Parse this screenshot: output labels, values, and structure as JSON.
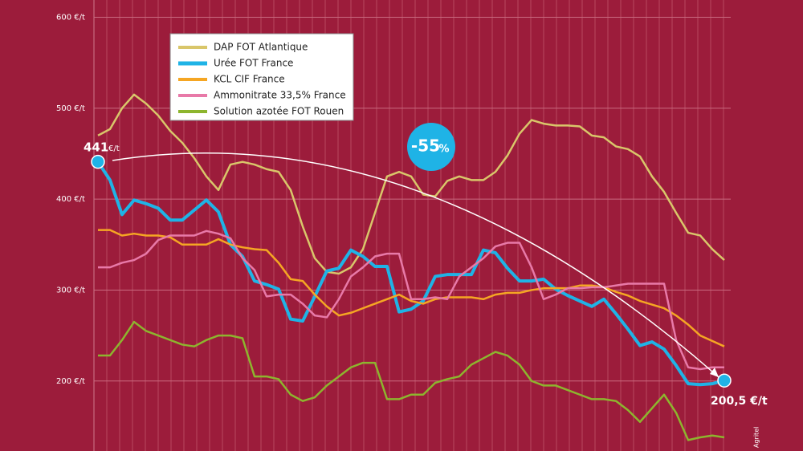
{
  "chart_data": {
    "type": "line",
    "categories": [
      null,
      null,
      null,
      null,
      null,
      null,
      null,
      null,
      null,
      null,
      null,
      null,
      null,
      null,
      null,
      null,
      null,
      null,
      null,
      null,
      null,
      null,
      null,
      null,
      null,
      null,
      null,
      null,
      null,
      null,
      null,
      null,
      null,
      null,
      null,
      null,
      null,
      null,
      null,
      null,
      null,
      null,
      null,
      null,
      null,
      null,
      null,
      null,
      null,
      null,
      null,
      null,
      null
    ],
    "series": [
      {
        "name": "DAP FOT Atlantique",
        "color": "#d9c66a",
        "values": [
          470,
          477,
          500,
          515,
          505,
          492,
          475,
          462,
          445,
          425,
          410,
          438,
          441,
          438,
          433,
          430,
          410,
          370,
          335,
          320,
          318,
          325,
          345,
          385,
          425,
          430,
          425,
          405,
          403,
          420,
          425,
          421,
          421,
          430,
          448,
          472,
          487,
          483,
          481,
          481,
          480,
          470,
          468,
          458,
          455,
          447,
          425,
          408,
          385,
          363,
          360,
          345,
          333
        ]
      },
      {
        "name": "Urée FOT France",
        "color": "#1fb3e6",
        "values": [
          441,
          421,
          383,
          399,
          395,
          390,
          377,
          377,
          388,
          399,
          386,
          350,
          337,
          310,
          306,
          301,
          268,
          266,
          293,
          321,
          324,
          344,
          337,
          326,
          326,
          276,
          279,
          288,
          315,
          317,
          317,
          317,
          344,
          341,
          324,
          310,
          310,
          312,
          301,
          294,
          288,
          282,
          290,
          274,
          257,
          239,
          243,
          235,
          217,
          197,
          196,
          197,
          200.5
        ]
      },
      {
        "name": "KCL CIF France",
        "color": "#f5a623",
        "values": [
          366,
          366,
          360,
          362,
          360,
          360,
          358,
          350,
          350,
          350,
          356,
          350,
          347,
          345,
          344,
          330,
          312,
          310,
          295,
          282,
          272,
          275,
          280,
          285,
          290,
          295,
          288,
          285,
          290,
          292,
          292,
          292,
          290,
          295,
          297,
          297,
          300,
          302,
          302,
          302,
          305,
          305,
          303,
          298,
          294,
          288,
          284,
          280,
          272,
          262,
          250,
          244,
          238
        ]
      },
      {
        "name": "Ammonitrate 33,5% France",
        "color": "#e879a8",
        "values": [
          325,
          325,
          330,
          333,
          340,
          355,
          360,
          360,
          360,
          365,
          362,
          357,
          335,
          322,
          293,
          295,
          295,
          285,
          272,
          270,
          290,
          315,
          325,
          337,
          340,
          340,
          290,
          290,
          292,
          290,
          315,
          325,
          335,
          348,
          352,
          352,
          325,
          290,
          295,
          302,
          302,
          303,
          303,
          305,
          307,
          307,
          307,
          307,
          245,
          215,
          213,
          215,
          215
        ]
      },
      {
        "name": "Solution azotée FOT Rouen",
        "color": "#8db52e",
        "values": [
          228,
          228,
          245,
          265,
          255,
          250,
          245,
          240,
          238,
          245,
          250,
          250,
          247,
          205,
          205,
          202,
          185,
          178,
          182,
          195,
          205,
          215,
          220,
          220,
          180,
          180,
          185,
          185,
          198,
          202,
          205,
          218,
          225,
          232,
          228,
          218,
          200,
          195,
          195,
          190,
          185,
          180,
          180,
          178,
          168,
          155,
          170,
          185,
          165,
          135,
          138,
          140,
          138
        ]
      }
    ],
    "ylim": [
      123,
      619
    ],
    "yticks": [
      {
        "value": 200,
        "label": "200 €/t"
      },
      {
        "value": 300,
        "label": "300 €/t"
      },
      {
        "value": 400,
        "label": "400 €/t"
      },
      {
        "value": 500,
        "label": "500 €/t"
      },
      {
        "value": 600,
        "label": "600 €/t"
      }
    ],
    "grid": true,
    "annotations": {
      "start": "441",
      "start_unit": "€/t",
      "change": "-55",
      "change_unit": "%",
      "end": "200,5 €/t",
      "source": "Agritel"
    }
  }
}
